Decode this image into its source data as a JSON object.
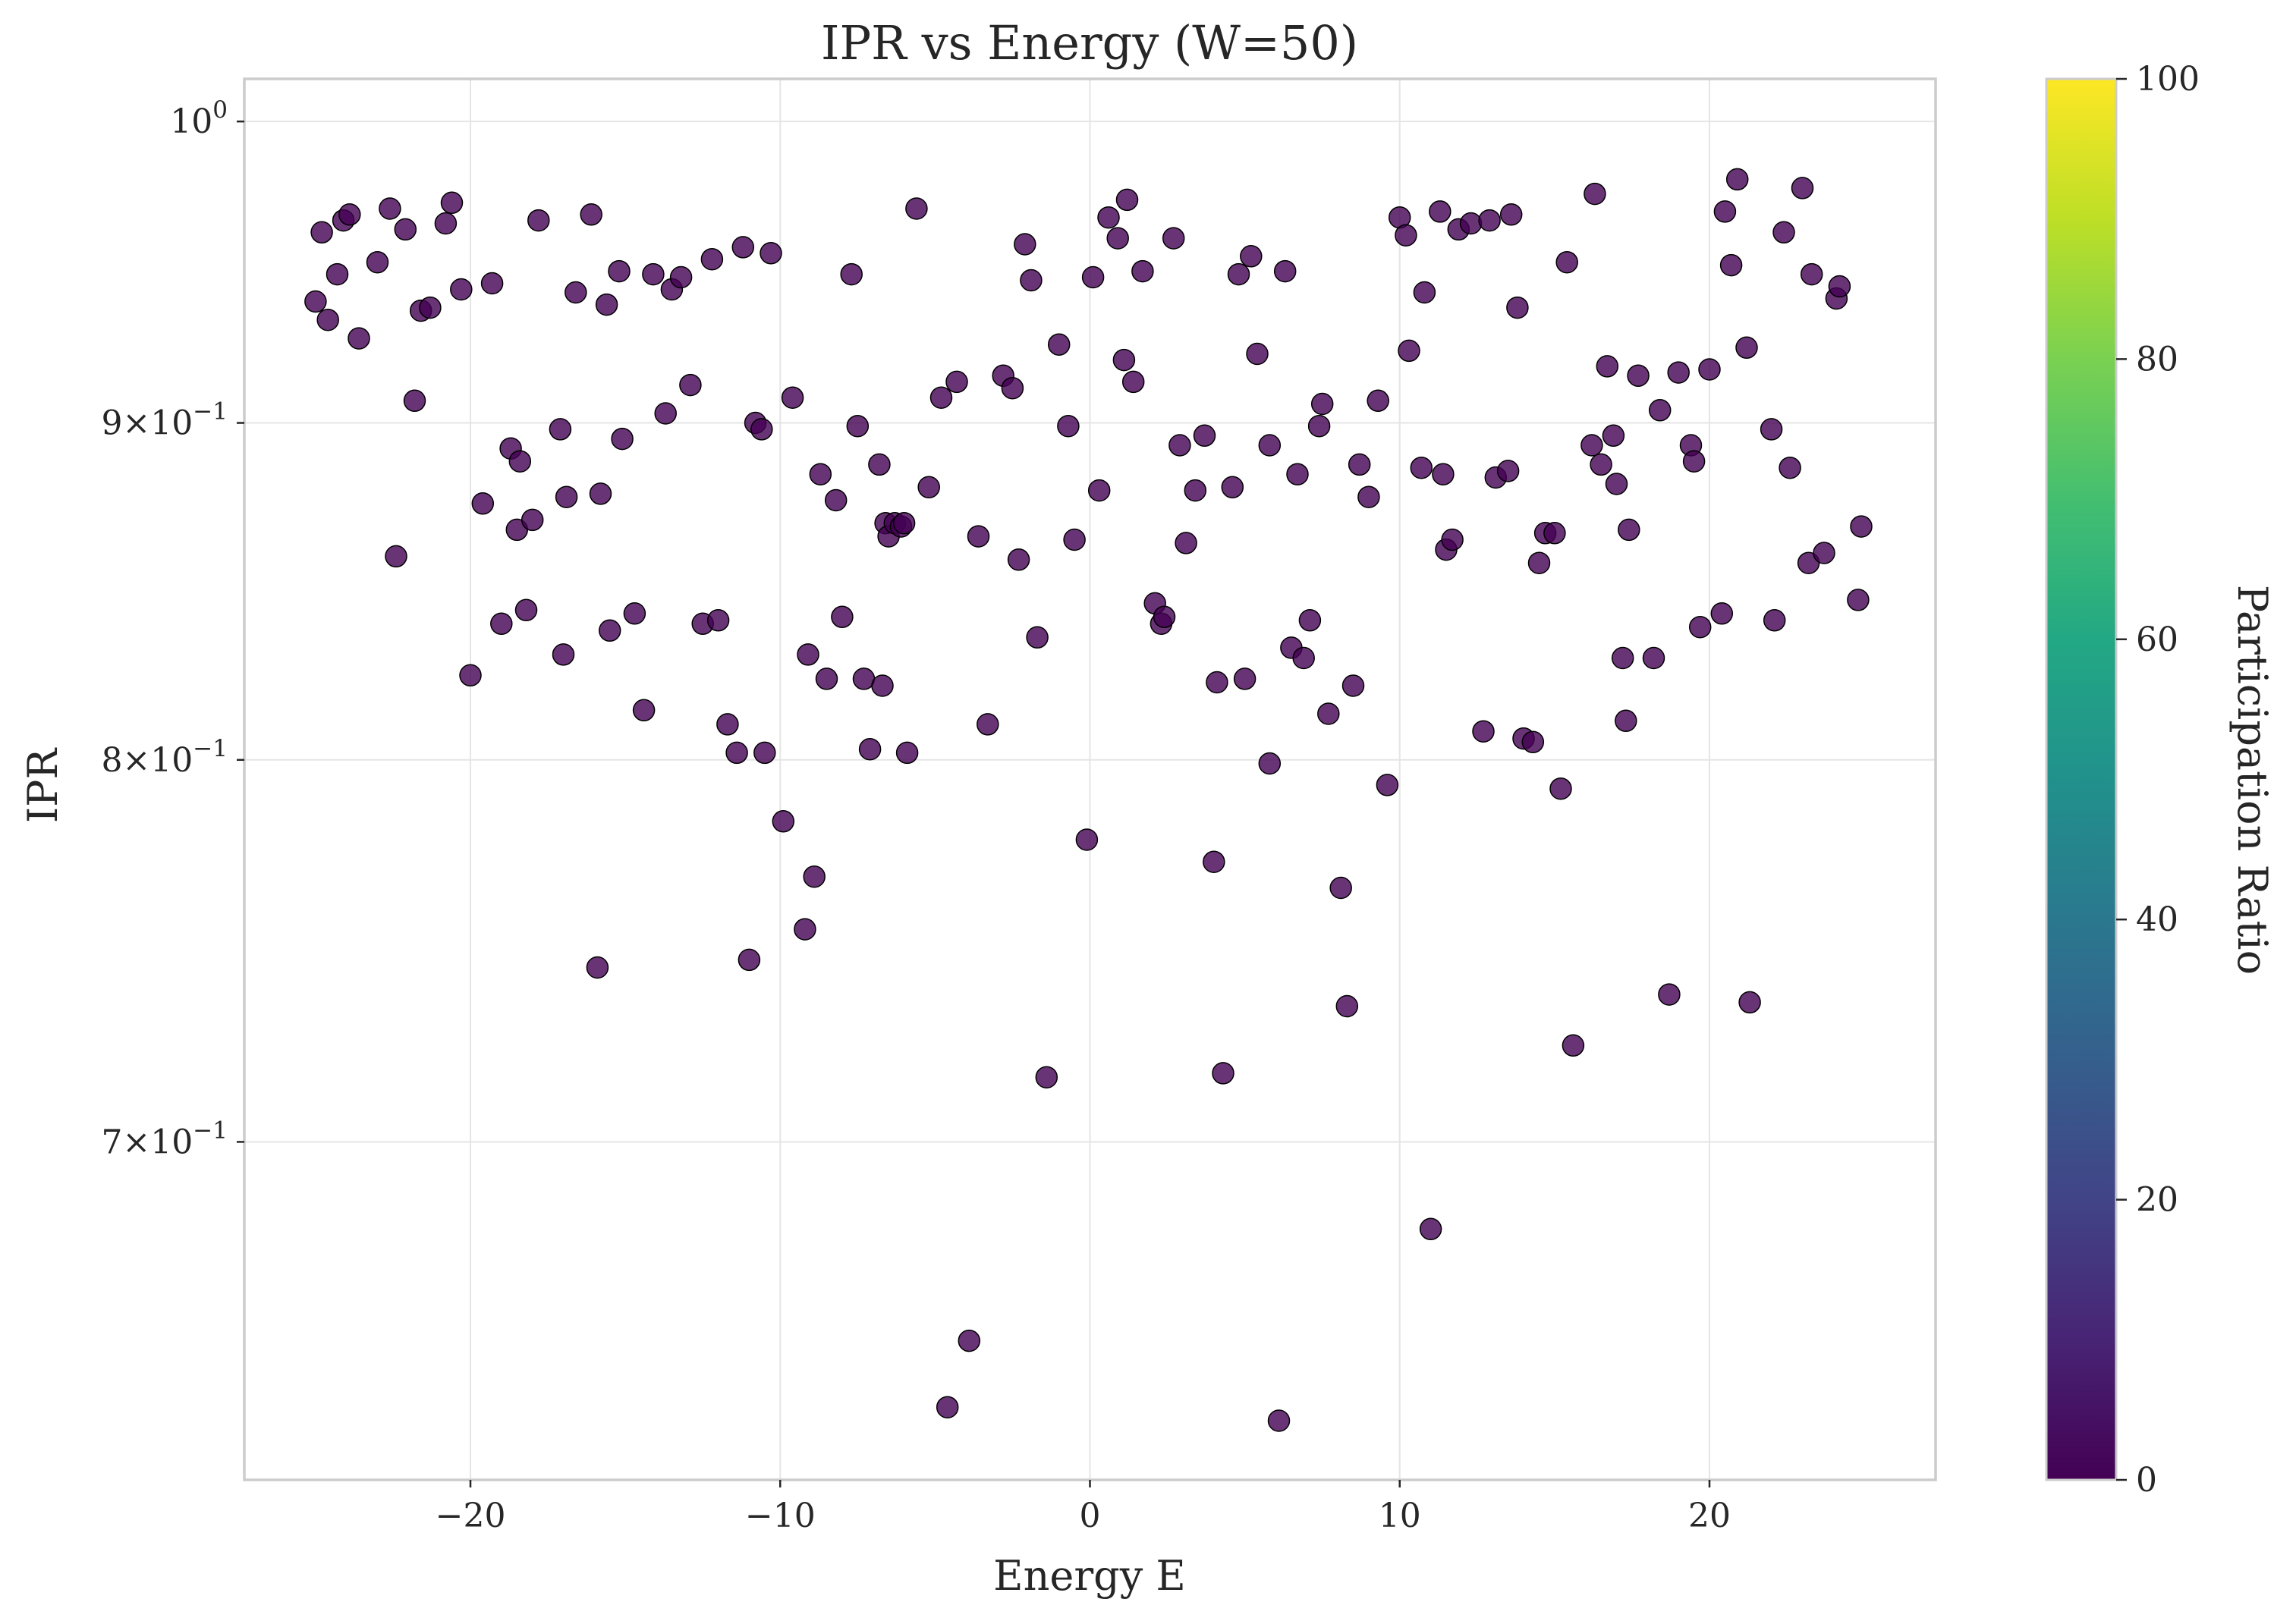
{
  "chart_data": {
    "type": "scatter",
    "title": "IPR vs Energy (W=50)",
    "xlabel": "Energy E",
    "ylabel": "IPR",
    "xlim": [
      -27.3,
      27.3
    ],
    "ylim": [
      0.622,
      1.015
    ],
    "yscale": "log",
    "grid": true,
    "xticks": [
      {
        "value": -20,
        "label": "−20"
      },
      {
        "value": -10,
        "label": "−10"
      },
      {
        "value": 0,
        "label": "0"
      },
      {
        "value": 10,
        "label": "10"
      },
      {
        "value": 20,
        "label": "20"
      }
    ],
    "yticks": [
      {
        "value": 0.7,
        "mantissa": "7×10",
        "exp": "−1"
      },
      {
        "value": 0.8,
        "mantissa": "8×10",
        "exp": "−1"
      },
      {
        "value": 0.9,
        "mantissa": "9×10",
        "exp": "−1"
      },
      {
        "value": 1.0,
        "mantissa": "10",
        "exp": "0"
      }
    ],
    "colorbar": {
      "label": "Participation Ratio",
      "min": 0,
      "max": 100,
      "colormap": "viridis",
      "ticks": [
        {
          "value": 0,
          "label": "0"
        },
        {
          "value": 20,
          "label": "20"
        },
        {
          "value": 40,
          "label": "40"
        },
        {
          "value": 60,
          "label": "60"
        },
        {
          "value": 80,
          "label": "80"
        },
        {
          "value": 100,
          "label": "100"
        }
      ]
    },
    "point_color": "#440154",
    "points": [
      [
        -25.0,
        0.939
      ],
      [
        -24.8,
        0.962
      ],
      [
        -24.6,
        0.933
      ],
      [
        -24.3,
        0.948
      ],
      [
        -24.1,
        0.966
      ],
      [
        -23.9,
        0.968
      ],
      [
        -23.6,
        0.927
      ],
      [
        -23.0,
        0.952
      ],
      [
        -22.6,
        0.97
      ],
      [
        -22.4,
        0.859
      ],
      [
        -22.1,
        0.963
      ],
      [
        -21.8,
        0.907
      ],
      [
        -21.6,
        0.936
      ],
      [
        -21.3,
        0.937
      ],
      [
        -20.8,
        0.965
      ],
      [
        -20.6,
        0.972
      ],
      [
        -20.3,
        0.943
      ],
      [
        -20.0,
        0.824
      ],
      [
        -19.6,
        0.875
      ],
      [
        -19.3,
        0.945
      ],
      [
        -19.0,
        0.839
      ],
      [
        -18.7,
        0.892
      ],
      [
        -18.5,
        0.867
      ],
      [
        -18.4,
        0.888
      ],
      [
        -18.2,
        0.843
      ],
      [
        -18.0,
        0.87
      ],
      [
        -17.8,
        0.966
      ],
      [
        -17.1,
        0.898
      ],
      [
        -17.0,
        0.83
      ],
      [
        -16.9,
        0.877
      ],
      [
        -16.6,
        0.942
      ],
      [
        -16.1,
        0.968
      ],
      [
        -15.9,
        0.744
      ],
      [
        -15.8,
        0.878
      ],
      [
        -15.6,
        0.938
      ],
      [
        -15.5,
        0.837
      ],
      [
        -15.2,
        0.949
      ],
      [
        -15.1,
        0.895
      ],
      [
        -14.7,
        0.842
      ],
      [
        -14.4,
        0.814
      ],
      [
        -14.1,
        0.948
      ],
      [
        -13.7,
        0.903
      ],
      [
        -13.5,
        0.943
      ],
      [
        -13.2,
        0.947
      ],
      [
        -12.9,
        0.912
      ],
      [
        -12.5,
        0.839
      ],
      [
        -12.2,
        0.953
      ],
      [
        -12.0,
        0.84
      ],
      [
        -11.7,
        0.81
      ],
      [
        -11.4,
        0.802
      ],
      [
        -11.2,
        0.957
      ],
      [
        -11.0,
        0.746
      ],
      [
        -10.8,
        0.9
      ],
      [
        -10.6,
        0.898
      ],
      [
        -10.5,
        0.802
      ],
      [
        -10.3,
        0.955
      ],
      [
        -9.9,
        0.783
      ],
      [
        -9.6,
        0.908
      ],
      [
        -9.2,
        0.754
      ],
      [
        -9.1,
        0.83
      ],
      [
        -8.9,
        0.768
      ],
      [
        -8.7,
        0.884
      ],
      [
        -8.5,
        0.823
      ],
      [
        -8.2,
        0.876
      ],
      [
        -8.0,
        0.841
      ],
      [
        -7.7,
        0.948
      ],
      [
        -7.5,
        0.899
      ],
      [
        -7.3,
        0.823
      ],
      [
        -7.1,
        0.803
      ],
      [
        -6.8,
        0.887
      ],
      [
        -6.7,
        0.821
      ],
      [
        -6.6,
        0.869
      ],
      [
        -6.5,
        0.865
      ],
      [
        -6.3,
        0.869
      ],
      [
        -6.1,
        0.868
      ],
      [
        -6.0,
        0.869
      ],
      [
        -5.9,
        0.802
      ],
      [
        -5.6,
        0.97
      ],
      [
        -5.2,
        0.88
      ],
      [
        -4.8,
        0.908
      ],
      [
        -4.6,
        0.638
      ],
      [
        -4.3,
        0.913
      ],
      [
        -3.9,
        0.653
      ],
      [
        -3.6,
        0.865
      ],
      [
        -3.3,
        0.81
      ],
      [
        -2.8,
        0.915
      ],
      [
        -2.5,
        0.911
      ],
      [
        -2.3,
        0.858
      ],
      [
        -2.1,
        0.958
      ],
      [
        -1.9,
        0.946
      ],
      [
        -1.7,
        0.835
      ],
      [
        -1.4,
        0.716
      ],
      [
        -1.0,
        0.925
      ],
      [
        -0.7,
        0.899
      ],
      [
        -0.5,
        0.864
      ],
      [
        -0.1,
        0.778
      ],
      [
        0.1,
        0.947
      ],
      [
        0.3,
        0.879
      ],
      [
        0.6,
        0.967
      ],
      [
        0.9,
        0.96
      ],
      [
        1.1,
        0.92
      ],
      [
        1.2,
        0.973
      ],
      [
        1.4,
        0.913
      ],
      [
        1.7,
        0.949
      ],
      [
        2.1,
        0.845
      ],
      [
        2.3,
        0.839
      ],
      [
        2.4,
        0.841
      ],
      [
        2.7,
        0.96
      ],
      [
        2.9,
        0.893
      ],
      [
        3.1,
        0.863
      ],
      [
        3.4,
        0.879
      ],
      [
        3.7,
        0.896
      ],
      [
        4.0,
        0.772
      ],
      [
        4.1,
        0.822
      ],
      [
        4.3,
        0.717
      ],
      [
        4.6,
        0.88
      ],
      [
        4.8,
        0.948
      ],
      [
        5.0,
        0.823
      ],
      [
        5.2,
        0.954
      ],
      [
        5.4,
        0.922
      ],
      [
        5.8,
        0.799
      ],
      [
        5.8,
        0.893
      ],
      [
        6.1,
        0.635
      ],
      [
        6.3,
        0.949
      ],
      [
        6.5,
        0.832
      ],
      [
        6.7,
        0.884
      ],
      [
        6.9,
        0.829
      ],
      [
        7.1,
        0.84
      ],
      [
        7.4,
        0.899
      ],
      [
        7.5,
        0.906
      ],
      [
        7.7,
        0.813
      ],
      [
        8.1,
        0.765
      ],
      [
        8.3,
        0.734
      ],
      [
        8.5,
        0.821
      ],
      [
        8.7,
        0.887
      ],
      [
        9.0,
        0.877
      ],
      [
        9.3,
        0.907
      ],
      [
        9.6,
        0.793
      ],
      [
        10.0,
        0.967
      ],
      [
        10.3,
        0.923
      ],
      [
        10.2,
        0.961
      ],
      [
        10.7,
        0.886
      ],
      [
        10.8,
        0.942
      ],
      [
        11.0,
        0.679
      ],
      [
        11.3,
        0.969
      ],
      [
        11.4,
        0.884
      ],
      [
        11.5,
        0.861
      ],
      [
        11.7,
        0.864
      ],
      [
        11.9,
        0.963
      ],
      [
        12.3,
        0.965
      ],
      [
        12.7,
        0.808
      ],
      [
        12.9,
        0.966
      ],
      [
        13.1,
        0.883
      ],
      [
        13.5,
        0.885
      ],
      [
        13.6,
        0.968
      ],
      [
        13.8,
        0.937
      ],
      [
        14.0,
        0.806
      ],
      [
        14.3,
        0.805
      ],
      [
        14.5,
        0.857
      ],
      [
        14.7,
        0.866
      ],
      [
        15.0,
        0.866
      ],
      [
        15.2,
        0.792
      ],
      [
        15.4,
        0.952
      ],
      [
        15.6,
        0.724
      ],
      [
        16.2,
        0.893
      ],
      [
        16.3,
        0.975
      ],
      [
        16.5,
        0.887
      ],
      [
        16.7,
        0.918
      ],
      [
        16.9,
        0.896
      ],
      [
        17.0,
        0.881
      ],
      [
        17.2,
        0.829
      ],
      [
        17.3,
        0.811
      ],
      [
        17.4,
        0.867
      ],
      [
        17.7,
        0.915
      ],
      [
        18.2,
        0.829
      ],
      [
        18.4,
        0.904
      ],
      [
        18.7,
        0.737
      ],
      [
        19.0,
        0.916
      ],
      [
        19.4,
        0.893
      ],
      [
        19.5,
        0.888
      ],
      [
        19.7,
        0.838
      ],
      [
        20.0,
        0.917
      ],
      [
        20.4,
        0.842
      ],
      [
        20.5,
        0.969
      ],
      [
        20.7,
        0.951
      ],
      [
        20.9,
        0.98
      ],
      [
        21.2,
        0.924
      ],
      [
        21.3,
        0.735
      ],
      [
        22.0,
        0.898
      ],
      [
        22.1,
        0.84
      ],
      [
        22.4,
        0.962
      ],
      [
        22.6,
        0.886
      ],
      [
        23.0,
        0.977
      ],
      [
        23.2,
        0.857
      ],
      [
        23.3,
        0.948
      ],
      [
        23.7,
        0.86
      ],
      [
        24.1,
        0.94
      ],
      [
        24.2,
        0.944
      ],
      [
        24.8,
        0.846
      ],
      [
        24.9,
        0.868
      ]
    ]
  }
}
